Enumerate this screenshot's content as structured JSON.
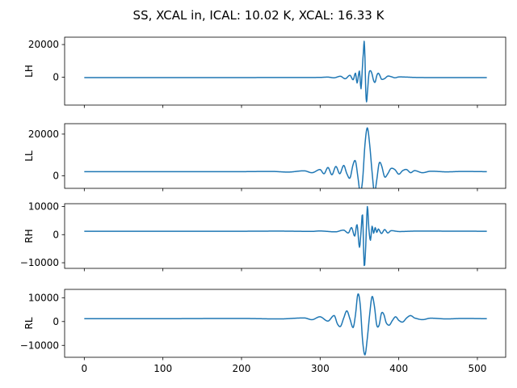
{
  "chart_data": {
    "type": "line",
    "title": "SS, XCAL in, ICAL: 10.02 K, XCAL: 16.33 K",
    "color": "#1f77b4",
    "grid": false,
    "legend": "none",
    "shared_x_axis": true,
    "x_ticks": [
      0,
      100,
      200,
      300,
      400,
      500
    ],
    "x_range": [
      -25,
      536
    ],
    "panels": [
      {
        "ylabel": "LH",
        "ylim": [
          -17000,
          24500
        ],
        "y_ticks": [
          0,
          20000
        ],
        "baseline": 0,
        "peak_index": 356,
        "points": [
          [
            0,
            -200
          ],
          [
            100,
            -200
          ],
          [
            200,
            -180
          ],
          [
            250,
            -150
          ],
          [
            300,
            -100
          ],
          [
            310,
            100
          ],
          [
            318,
            -300
          ],
          [
            326,
            600
          ],
          [
            332,
            -900
          ],
          [
            338,
            1200
          ],
          [
            342,
            -1500
          ],
          [
            345,
            2500
          ],
          [
            347,
            -3500
          ],
          [
            350,
            3800
          ],
          [
            352,
            -7000
          ],
          [
            354,
            8000
          ],
          [
            355,
            15000
          ],
          [
            356,
            22000
          ],
          [
            357,
            12000
          ],
          [
            358,
            -8000
          ],
          [
            359,
            -15000
          ],
          [
            360,
            -10000
          ],
          [
            362,
            2000
          ],
          [
            364,
            4000
          ],
          [
            366,
            2000
          ],
          [
            368,
            -2000
          ],
          [
            370,
            -3000
          ],
          [
            372,
            1000
          ],
          [
            374,
            2500
          ],
          [
            376,
            1000
          ],
          [
            378,
            -1200
          ],
          [
            382,
            -800
          ],
          [
            386,
            700
          ],
          [
            390,
            400
          ],
          [
            395,
            -300
          ],
          [
            400,
            200
          ],
          [
            410,
            100
          ],
          [
            420,
            -100
          ],
          [
            440,
            -200
          ],
          [
            512,
            -200
          ]
        ]
      },
      {
        "ylabel": "LL",
        "ylim": [
          -6000,
          25000
        ],
        "y_ticks": [
          0,
          20000
        ],
        "baseline": 2000,
        "peak_index": 359,
        "points": [
          [
            0,
            2000
          ],
          [
            100,
            2000
          ],
          [
            200,
            2000
          ],
          [
            240,
            2100
          ],
          [
            260,
            1800
          ],
          [
            280,
            2400
          ],
          [
            290,
            1500
          ],
          [
            300,
            3000
          ],
          [
            305,
            1000
          ],
          [
            310,
            4000
          ],
          [
            315,
            500
          ],
          [
            320,
            4500
          ],
          [
            325,
            1000
          ],
          [
            330,
            5000
          ],
          [
            334,
            1000
          ],
          [
            338,
            -1000
          ],
          [
            342,
            5500
          ],
          [
            345,
            7000
          ],
          [
            348,
            -500
          ],
          [
            351,
            -8000
          ],
          [
            354,
            -2000
          ],
          [
            357,
            15000
          ],
          [
            360,
            23000
          ],
          [
            363,
            15000
          ],
          [
            366,
            2000
          ],
          [
            369,
            -8000
          ],
          [
            372,
            -2000
          ],
          [
            375,
            6000
          ],
          [
            378,
            5000
          ],
          [
            382,
            -500
          ],
          [
            386,
            1000
          ],
          [
            390,
            3500
          ],
          [
            395,
            3000
          ],
          [
            400,
            800
          ],
          [
            405,
            2500
          ],
          [
            410,
            3000
          ],
          [
            415,
            1500
          ],
          [
            420,
            2500
          ],
          [
            430,
            1500
          ],
          [
            440,
            2200
          ],
          [
            460,
            1900
          ],
          [
            480,
            2100
          ],
          [
            512,
            2000
          ]
        ]
      },
      {
        "ylabel": "RH",
        "ylim": [
          -12000,
          11000
        ],
        "y_ticks": [
          -10000,
          0,
          10000
        ],
        "baseline": 1200,
        "peak_index": 360,
        "points": [
          [
            0,
            1200
          ],
          [
            100,
            1200
          ],
          [
            200,
            1200
          ],
          [
            250,
            1250
          ],
          [
            290,
            1150
          ],
          [
            300,
            1300
          ],
          [
            320,
            1000
          ],
          [
            330,
            1600
          ],
          [
            336,
            600
          ],
          [
            340,
            2500
          ],
          [
            344,
            -500
          ],
          [
            347,
            3500
          ],
          [
            350,
            -4500
          ],
          [
            352,
            1000
          ],
          [
            354,
            7000
          ],
          [
            356,
            -11000
          ],
          [
            358,
            -4000
          ],
          [
            360,
            10000
          ],
          [
            362,
            2000
          ],
          [
            364,
            -2000
          ],
          [
            366,
            3000
          ],
          [
            368,
            500
          ],
          [
            370,
            2500
          ],
          [
            372,
            800
          ],
          [
            374,
            2000
          ],
          [
            378,
            400
          ],
          [
            382,
            1800
          ],
          [
            386,
            600
          ],
          [
            390,
            1400
          ],
          [
            400,
            1100
          ],
          [
            420,
            1250
          ],
          [
            512,
            1200
          ]
        ]
      },
      {
        "ylabel": "RL",
        "ylim": [
          -15000,
          13500
        ],
        "y_ticks": [
          -10000,
          0,
          10000
        ],
        "baseline": 1200,
        "peak_index": 356,
        "points": [
          [
            0,
            1200
          ],
          [
            100,
            1200
          ],
          [
            200,
            1300
          ],
          [
            250,
            1100
          ],
          [
            280,
            1500
          ],
          [
            290,
            800
          ],
          [
            300,
            2000
          ],
          [
            310,
            200
          ],
          [
            318,
            2500
          ],
          [
            322,
            -1000
          ],
          [
            326,
            -2000
          ],
          [
            330,
            1500
          ],
          [
            334,
            4500
          ],
          [
            338,
            1000
          ],
          [
            342,
            -2500
          ],
          [
            345,
            3000
          ],
          [
            348,
            11500
          ],
          [
            351,
            7000
          ],
          [
            354,
            -8000
          ],
          [
            357,
            -14000
          ],
          [
            360,
            -7000
          ],
          [
            363,
            3000
          ],
          [
            366,
            10500
          ],
          [
            369,
            6500
          ],
          [
            372,
            -1500
          ],
          [
            375,
            -1500
          ],
          [
            378,
            3500
          ],
          [
            381,
            3000
          ],
          [
            384,
            -500
          ],
          [
            388,
            -1500
          ],
          [
            392,
            500
          ],
          [
            396,
            2000
          ],
          [
            400,
            500
          ],
          [
            405,
            -200
          ],
          [
            410,
            1500
          ],
          [
            415,
            2500
          ],
          [
            420,
            1500
          ],
          [
            430,
            800
          ],
          [
            440,
            1400
          ],
          [
            460,
            1100
          ],
          [
            480,
            1300
          ],
          [
            512,
            1200
          ]
        ]
      }
    ]
  }
}
